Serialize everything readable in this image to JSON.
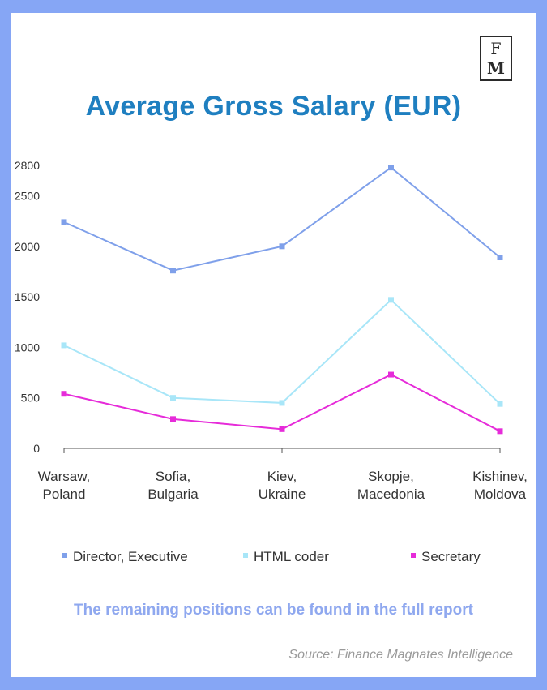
{
  "logo": {
    "top": "F",
    "bottom": "M"
  },
  "footer_note": "The remaining positions can be found in the full report",
  "source": "Source: Finance Magnates Intelligence",
  "colors": {
    "background": "#86a6f5",
    "title": "#1f7fc0",
    "director": "#7fa0ea",
    "html_coder": "#a8e6f8",
    "secretary": "#e62bd9",
    "footer_note": "#8fa8ef"
  },
  "chart_data": {
    "type": "line",
    "title": "Average Gross Salary (EUR)",
    "categories": [
      [
        "Warsaw,",
        "Poland"
      ],
      [
        "Sofia,",
        "Bulgaria"
      ],
      [
        "Kiev,",
        "Ukraine"
      ],
      [
        "Skopje,",
        "Macedonia"
      ],
      [
        "Kishinev,",
        "Moldova"
      ]
    ],
    "yticks": [
      0,
      500,
      1000,
      1500,
      2000,
      2500,
      2800
    ],
    "ylim": [
      0,
      2800
    ],
    "grid": false,
    "legend_position": "bottom",
    "series": [
      {
        "name": "Director, Executive",
        "color": "#7fa0ea",
        "values": [
          2240,
          1760,
          2000,
          2780,
          1890
        ]
      },
      {
        "name": "HTML coder",
        "color": "#a8e6f8",
        "values": [
          1020,
          500,
          450,
          1470,
          440
        ]
      },
      {
        "name": "Secretary",
        "color": "#e62bd9",
        "values": [
          540,
          290,
          190,
          730,
          170
        ]
      }
    ]
  }
}
